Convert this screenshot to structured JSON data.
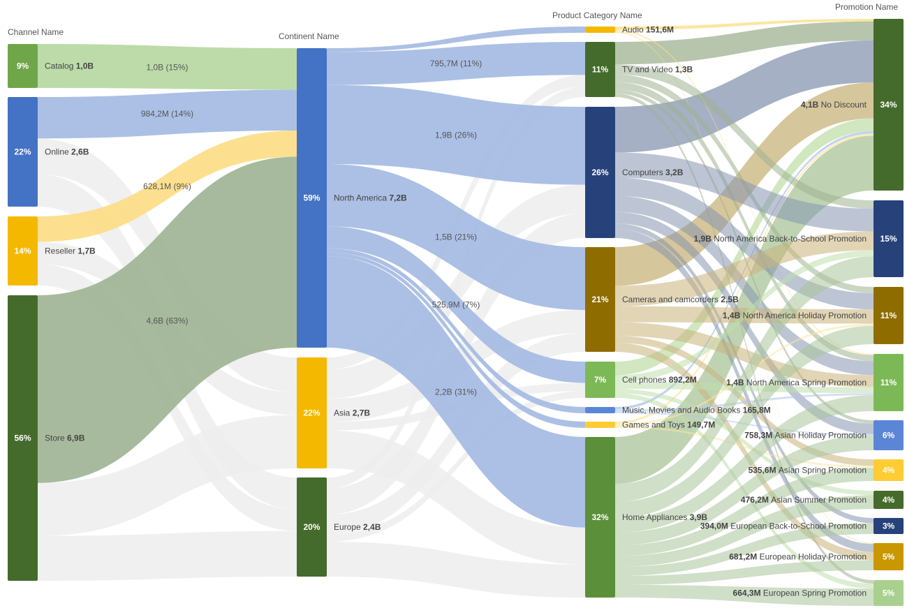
{
  "chart_data": {
    "type": "sankey",
    "columns": [
      "Channel Name",
      "Continent Name",
      "Product Category Name",
      "Promotion Name"
    ],
    "colors": {
      "green_dark": "#4a7a2e",
      "green_mid": "#5b8f3a",
      "green_light": "#7cb956",
      "blue": "#4472c4",
      "navy": "#27427a",
      "gold": "#f5b800",
      "brown": "#8f6c00",
      "mustard": "#c99700",
      "blue_light": "#5b86d6",
      "link_grey": "#ededed"
    },
    "nodes": [
      {
        "id": "catalog",
        "col": 0,
        "label": "Catalog",
        "value": "1,0B",
        "pct": "9%",
        "color": "#6fa64a",
        "link_color": "#b6d7a0"
      },
      {
        "id": "online",
        "col": 0,
        "label": "Online",
        "value": "2,6B",
        "pct": "22%",
        "color": "#4472c4",
        "link_color": "#a3b9e2"
      },
      {
        "id": "reseller",
        "col": 0,
        "label": "Reseller",
        "value": "1,7B",
        "pct": "14%",
        "color": "#f5b800",
        "link_color": "#fcdd84"
      },
      {
        "id": "store",
        "col": 0,
        "label": "Store",
        "value": "6,9B",
        "pct": "56%",
        "color": "#446b2b",
        "link_color": "#9fb292"
      },
      {
        "id": "north_america",
        "col": 1,
        "label": "North America",
        "value": "7,2B",
        "pct": "59%",
        "color": "#4472c4",
        "link_color": "#a3b9e2"
      },
      {
        "id": "asia",
        "col": 1,
        "label": "Asia",
        "value": "2,7B",
        "pct": "22%",
        "color": "#f5b800",
        "link_color": "#fcdd84"
      },
      {
        "id": "europe",
        "col": 1,
        "label": "Europe",
        "value": "2,4B",
        "pct": "20%",
        "color": "#446b2b",
        "link_color": "#9fb292"
      },
      {
        "id": "audio",
        "col": 2,
        "label": "Audio",
        "value": "151,6M",
        "pct": "",
        "color": "#f5b800",
        "link_color": "#fcdd84"
      },
      {
        "id": "tv",
        "col": 2,
        "label": "TV and Video",
        "value": "1,3B",
        "pct": "11%",
        "color": "#446b2b",
        "link_color": "#9fb292"
      },
      {
        "id": "computers",
        "col": 2,
        "label": "Computers",
        "value": "3,2B",
        "pct": "26%",
        "color": "#27427a",
        "link_color": "#8795b1"
      },
      {
        "id": "cameras",
        "col": 2,
        "label": "Cameras and camcorders",
        "value": "2,5B",
        "pct": "21%",
        "color": "#8f6c00",
        "link_color": "#c8b37a"
      },
      {
        "id": "cell",
        "col": 2,
        "label": "Cell phones",
        "value": "892,2M",
        "pct": "7%",
        "color": "#7cb956",
        "link_color": "#c0dfab"
      },
      {
        "id": "music",
        "col": 2,
        "label": "Music, Movies and Audio Books",
        "value": "165,8M",
        "pct": "",
        "color": "#5b86d6",
        "link_color": "#aec4ec"
      },
      {
        "id": "games",
        "col": 2,
        "label": "Games and Toys",
        "value": "149,7M",
        "pct": "",
        "color": "#ffcc33",
        "link_color": "#fde69b"
      },
      {
        "id": "home",
        "col": 2,
        "label": "Home Appliances",
        "value": "3,9B",
        "pct": "32%",
        "color": "#5b8f3a",
        "link_color": "#a9c49a"
      },
      {
        "id": "no_discount",
        "col": 3,
        "label": "No Discount",
        "value": "4,1B",
        "pct": "34%",
        "color": "#446b2b"
      },
      {
        "id": "na_bts",
        "col": 3,
        "label": "North America Back-to-School Promotion",
        "value": "1,9B",
        "pct": "15%",
        "color": "#27427a"
      },
      {
        "id": "na_holiday",
        "col": 3,
        "label": "North America Holiday Promotion",
        "value": "1,4B",
        "pct": "11%",
        "color": "#8f6c00"
      },
      {
        "id": "na_spring",
        "col": 3,
        "label": "North America Spring Promotion",
        "value": "1,4B",
        "pct": "11%",
        "color": "#7cb956"
      },
      {
        "id": "asian_holiday",
        "col": 3,
        "label": "Asian Holiday Promotion",
        "value": "758,3M",
        "pct": "6%",
        "color": "#5b86d6"
      },
      {
        "id": "asian_spring",
        "col": 3,
        "label": "Asian Spring Promotion",
        "value": "535,6M",
        "pct": "4%",
        "color": "#ffcc33"
      },
      {
        "id": "asian_summer",
        "col": 3,
        "label": "Asian Summer Promotion",
        "value": "476,2M",
        "pct": "4%",
        "color": "#446b2b"
      },
      {
        "id": "eu_bts",
        "col": 3,
        "label": "European Back-to-School Promotion",
        "value": "394,0M",
        "pct": "3%",
        "color": "#27427a"
      },
      {
        "id": "eu_holiday",
        "col": 3,
        "label": "European Holiday Promotion",
        "value": "681,2M",
        "pct": "5%",
        "color": "#c99700"
      },
      {
        "id": "eu_spring",
        "col": 3,
        "label": "European Spring Promotion",
        "value": "664,3M",
        "pct": "5%",
        "color": "#a9d08e"
      }
    ],
    "links": [
      {
        "source": "catalog",
        "target": "north_america",
        "value": 1.0,
        "label": "1,0B (15%)",
        "highlight": true
      },
      {
        "source": "online",
        "target": "north_america",
        "value": 0.9842,
        "label": "984,2M (14%)",
        "highlight": true
      },
      {
        "source": "online",
        "target": "asia",
        "value": 0.85,
        "label": ""
      },
      {
        "source": "online",
        "target": "europe",
        "value": 0.77,
        "label": ""
      },
      {
        "source": "reseller",
        "target": "north_america",
        "value": 0.6281,
        "label": "628,1M (9%)",
        "highlight": true
      },
      {
        "source": "reseller",
        "target": "asia",
        "value": 0.55,
        "label": ""
      },
      {
        "source": "reseller",
        "target": "europe",
        "value": 0.52,
        "label": ""
      },
      {
        "source": "store",
        "target": "north_america",
        "value": 4.6,
        "label": "4,6B (63%)",
        "highlight": true
      },
      {
        "source": "store",
        "target": "asia",
        "value": 1.3,
        "label": ""
      },
      {
        "source": "store",
        "target": "europe",
        "value": 1.1,
        "label": ""
      },
      {
        "source": "north_america",
        "target": "audio",
        "value": 0.09,
        "label": "",
        "highlight": true
      },
      {
        "source": "north_america",
        "target": "tv",
        "value": 0.7957,
        "label": "795,7M (11%)",
        "highlight": true
      },
      {
        "source": "north_america",
        "target": "computers",
        "value": 1.9,
        "label": "1,9B (26%)",
        "highlight": true
      },
      {
        "source": "north_america",
        "target": "cameras",
        "value": 1.5,
        "label": "1,5B (21%)",
        "highlight": true
      },
      {
        "source": "north_america",
        "target": "cell",
        "value": 0.5259,
        "label": "525,9M (7%)",
        "highlight": true
      },
      {
        "source": "north_america",
        "target": "music",
        "value": 0.1,
        "label": "",
        "highlight": true
      },
      {
        "source": "north_america",
        "target": "games",
        "value": 0.09,
        "label": "",
        "highlight": true
      },
      {
        "source": "north_america",
        "target": "home",
        "value": 2.2,
        "label": "2,2B (31%)",
        "highlight": true
      },
      {
        "source": "asia",
        "target": "tv",
        "value": 0.28,
        "label": ""
      },
      {
        "source": "asia",
        "target": "computers",
        "value": 0.7,
        "label": ""
      },
      {
        "source": "asia",
        "target": "cameras",
        "value": 0.55,
        "label": ""
      },
      {
        "source": "asia",
        "target": "cell",
        "value": 0.2,
        "label": ""
      },
      {
        "source": "asia",
        "target": "home",
        "value": 0.9,
        "label": ""
      },
      {
        "source": "europe",
        "target": "tv",
        "value": 0.25,
        "label": ""
      },
      {
        "source": "europe",
        "target": "computers",
        "value": 0.6,
        "label": ""
      },
      {
        "source": "europe",
        "target": "cameras",
        "value": 0.45,
        "label": ""
      },
      {
        "source": "europe",
        "target": "cell",
        "value": 0.17,
        "label": ""
      },
      {
        "source": "europe",
        "target": "home",
        "value": 0.8,
        "label": ""
      },
      {
        "source": "audio",
        "target": "no_discount",
        "value": 0.06
      },
      {
        "source": "audio",
        "target": "na_spring",
        "value": 0.03
      },
      {
        "source": "audio",
        "target": "eu_holiday",
        "value": 0.02
      },
      {
        "source": "tv",
        "target": "no_discount",
        "value": 0.45
      },
      {
        "source": "tv",
        "target": "na_bts",
        "value": 0.2
      },
      {
        "source": "tv",
        "target": "na_holiday",
        "value": 0.15
      },
      {
        "source": "tv",
        "target": "na_spring",
        "value": 0.15
      },
      {
        "source": "tv",
        "target": "asian_holiday",
        "value": 0.08
      },
      {
        "source": "tv",
        "target": "eu_spring",
        "value": 0.07
      },
      {
        "source": "computers",
        "target": "no_discount",
        "value": 1.0
      },
      {
        "source": "computers",
        "target": "na_bts",
        "value": 0.55
      },
      {
        "source": "computers",
        "target": "na_holiday",
        "value": 0.4
      },
      {
        "source": "computers",
        "target": "na_spring",
        "value": 0.35
      },
      {
        "source": "computers",
        "target": "asian_holiday",
        "value": 0.25
      },
      {
        "source": "computers",
        "target": "eu_bts",
        "value": 0.12
      },
      {
        "source": "computers",
        "target": "eu_holiday",
        "value": 0.2
      },
      {
        "source": "cameras",
        "target": "no_discount",
        "value": 0.85
      },
      {
        "source": "cameras",
        "target": "na_bts",
        "value": 0.45
      },
      {
        "source": "cameras",
        "target": "na_holiday",
        "value": 0.35
      },
      {
        "source": "cameras",
        "target": "na_spring",
        "value": 0.3
      },
      {
        "source": "cameras",
        "target": "asian_spring",
        "value": 0.15
      },
      {
        "source": "cameras",
        "target": "eu_holiday",
        "value": 0.2
      },
      {
        "source": "cell",
        "target": "no_discount",
        "value": 0.3
      },
      {
        "source": "cell",
        "target": "na_bts",
        "value": 0.15
      },
      {
        "source": "cell",
        "target": "na_spring",
        "value": 0.15
      },
      {
        "source": "cell",
        "target": "asian_summer",
        "value": 0.1
      },
      {
        "source": "cell",
        "target": "eu_spring",
        "value": 0.1
      },
      {
        "source": "music",
        "target": "no_discount",
        "value": 0.06
      },
      {
        "source": "music",
        "target": "na_spring",
        "value": 0.05
      },
      {
        "source": "music",
        "target": "asian_holiday",
        "value": 0.03
      },
      {
        "source": "games",
        "target": "no_discount",
        "value": 0.05
      },
      {
        "source": "games",
        "target": "na_holiday",
        "value": 0.05
      },
      {
        "source": "games",
        "target": "asian_spring",
        "value": 0.04
      },
      {
        "source": "home",
        "target": "no_discount",
        "value": 1.3
      },
      {
        "source": "home",
        "target": "na_bts",
        "value": 0.5
      },
      {
        "source": "home",
        "target": "na_holiday",
        "value": 0.45
      },
      {
        "source": "home",
        "target": "na_spring",
        "value": 0.4
      },
      {
        "source": "home",
        "target": "asian_holiday",
        "value": 0.35
      },
      {
        "source": "home",
        "target": "asian_spring",
        "value": 0.3
      },
      {
        "source": "home",
        "target": "asian_summer",
        "value": 0.3
      },
      {
        "source": "home",
        "target": "eu_bts",
        "value": 0.25
      },
      {
        "source": "home",
        "target": "eu_holiday",
        "value": 0.25
      },
      {
        "source": "home",
        "target": "eu_spring",
        "value": 0.35
      }
    ]
  }
}
